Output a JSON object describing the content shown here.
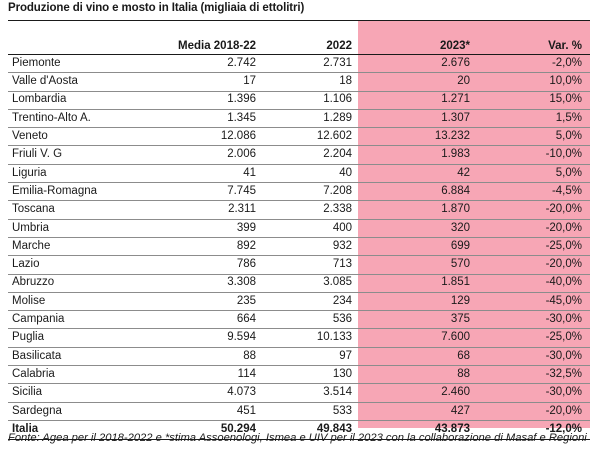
{
  "title": "Produzione di vino e mosto in Italia (migliaia di ettolitri)",
  "columns": {
    "region": "",
    "media": "Media 2018-22",
    "y2022": "2022",
    "y2023": "2023*",
    "var": "Var. %"
  },
  "rows": [
    {
      "region": "Piemonte",
      "media": "2.742",
      "y2022": "2.731",
      "y2023": "2.676",
      "var": "-2,0%"
    },
    {
      "region": "Valle d'Aosta",
      "media": "17",
      "y2022": "18",
      "y2023": "20",
      "var": "10,0%"
    },
    {
      "region": "Lombardia",
      "media": "1.396",
      "y2022": "1.106",
      "y2023": "1.271",
      "var": "15,0%"
    },
    {
      "region": "Trentino-Alto A.",
      "media": "1.345",
      "y2022": "1.289",
      "y2023": "1.307",
      "var": "1,5%"
    },
    {
      "region": "Veneto",
      "media": "12.086",
      "y2022": "12.602",
      "y2023": "13.232",
      "var": "5,0%"
    },
    {
      "region": "Friuli V. G",
      "media": "2.006",
      "y2022": "2.204",
      "y2023": "1.983",
      "var": "-10,0%"
    },
    {
      "region": "Liguria",
      "media": "41",
      "y2022": "40",
      "y2023": "42",
      "var": "5,0%"
    },
    {
      "region": "Emilia-Romagna",
      "media": "7.745",
      "y2022": "7.208",
      "y2023": "6.884",
      "var": "-4,5%"
    },
    {
      "region": "Toscana",
      "media": "2.311",
      "y2022": "2.338",
      "y2023": "1.870",
      "var": "-20,0%"
    },
    {
      "region": "Umbria",
      "media": "399",
      "y2022": "400",
      "y2023": "320",
      "var": "-20,0%"
    },
    {
      "region": "Marche",
      "media": "892",
      "y2022": "932",
      "y2023": "699",
      "var": "-25,0%"
    },
    {
      "region": "Lazio",
      "media": "786",
      "y2022": "713",
      "y2023": "570",
      "var": "-20,0%"
    },
    {
      "region": "Abruzzo",
      "media": "3.308",
      "y2022": "3.085",
      "y2023": "1.851",
      "var": "-40,0%"
    },
    {
      "region": "Molise",
      "media": "235",
      "y2022": "234",
      "y2023": "129",
      "var": "-45,0%"
    },
    {
      "region": "Campania",
      "media": "664",
      "y2022": "536",
      "y2023": "375",
      "var": "-30,0%"
    },
    {
      "region": "Puglia",
      "media": "9.594",
      "y2022": "10.133",
      "y2023": "7.600",
      "var": "-25,0%"
    },
    {
      "region": "Basilicata",
      "media": "88",
      "y2022": "97",
      "y2023": "68",
      "var": "-30,0%"
    },
    {
      "region": "Calabria",
      "media": "114",
      "y2022": "130",
      "y2023": "88",
      "var": "-32,5%"
    },
    {
      "region": "Sicilia",
      "media": "4.073",
      "y2022": "3.514",
      "y2023": "2.460",
      "var": "-30,0%"
    },
    {
      "region": "Sardegna",
      "media": "451",
      "y2022": "533",
      "y2023": "427",
      "var": "-20,0%"
    }
  ],
  "total": {
    "region": "Italia",
    "media": "50.294",
    "y2022": "49.843",
    "y2023": "43.873",
    "var": "-12,0%"
  },
  "footnote": "Fonte: Agea per il 2018-2022 e *stima Assoenologi, Ismea e UIV per il 2023 con la collaborazione di Masaf e Regioni",
  "colors": {
    "highlight": "#f7a6b5"
  }
}
